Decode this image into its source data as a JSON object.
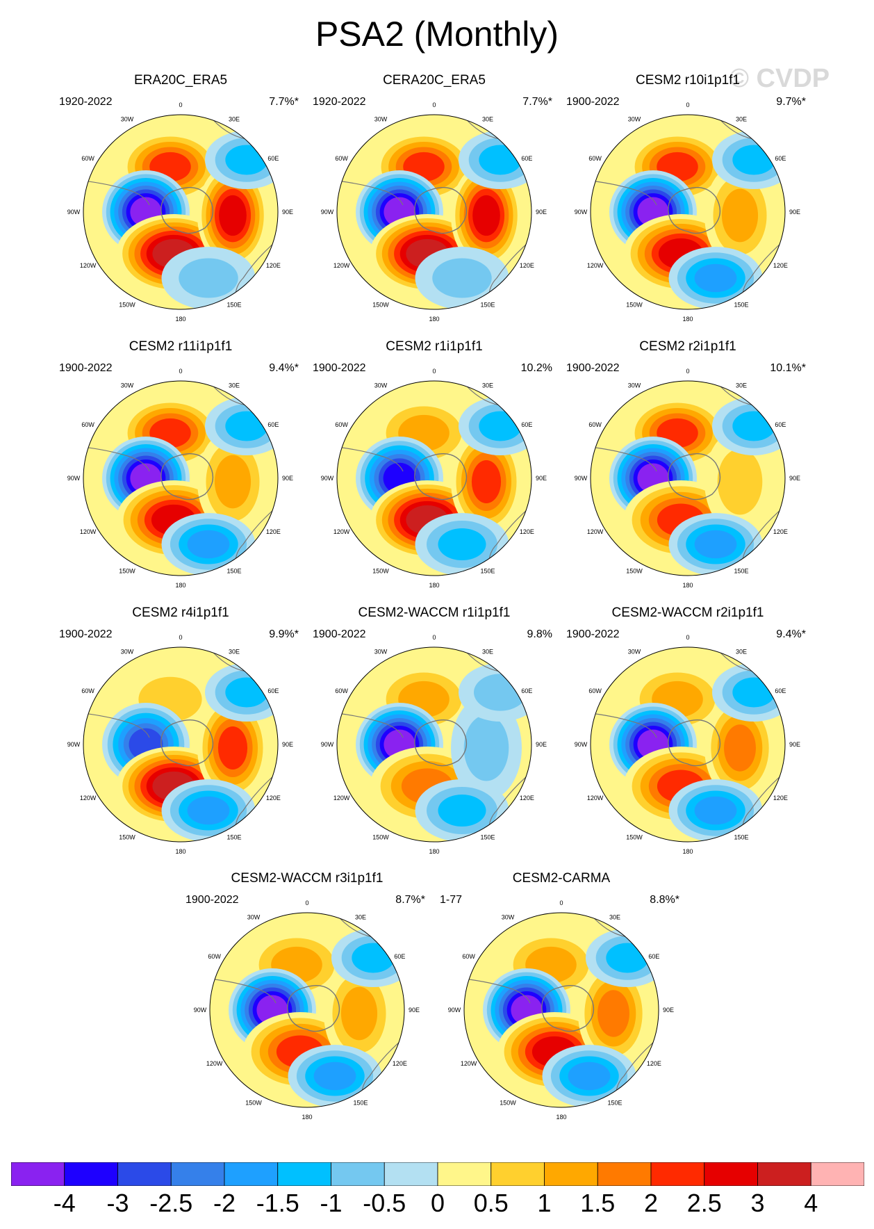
{
  "title": "PSA2 (Monthly)",
  "watermark": "© CVDP",
  "lon_labels": [
    "0",
    "30E",
    "60E",
    "90E",
    "120E",
    "150E",
    "180",
    "150W",
    "120W",
    "90W",
    "60W",
    "30W"
  ],
  "panels": [
    {
      "title": "ERA20C_ERA5",
      "years": "1920-2022",
      "pct": "7.7%*",
      "blobs": [
        {
          "v": 2.5,
          "kind": "pos"
        },
        {
          "v": -4,
          "kind": "neg"
        },
        {
          "v": 4,
          "kind": "pos"
        },
        {
          "v": 3,
          "kind": "pos"
        },
        {
          "v": -0.5,
          "kind": "neg"
        },
        {
          "v": -1,
          "kind": "neg"
        }
      ]
    },
    {
      "title": "CERA20C_ERA5",
      "years": "1920-2022",
      "pct": "7.7%*",
      "blobs": [
        {
          "v": 2.5,
          "kind": "pos"
        },
        {
          "v": -4,
          "kind": "neg"
        },
        {
          "v": 4,
          "kind": "pos"
        },
        {
          "v": 3,
          "kind": "pos"
        },
        {
          "v": -0.5,
          "kind": "neg"
        },
        {
          "v": -1,
          "kind": "neg"
        }
      ]
    },
    {
      "title": "CESM2 r10i1p1f1",
      "years": "1900-2022",
      "pct": "9.7%*",
      "blobs": [
        {
          "v": 2.5,
          "kind": "pos"
        },
        {
          "v": -4,
          "kind": "neg"
        },
        {
          "v": 3,
          "kind": "pos"
        },
        {
          "v": 1.5,
          "kind": "pos"
        },
        {
          "v": -1.5,
          "kind": "neg"
        },
        {
          "v": -1,
          "kind": "neg"
        }
      ]
    },
    {
      "title": "CESM2 r11i1p1f1",
      "years": "1900-2022",
      "pct": "9.4%*",
      "blobs": [
        {
          "v": 2.5,
          "kind": "pos"
        },
        {
          "v": -4,
          "kind": "neg"
        },
        {
          "v": 3,
          "kind": "pos"
        },
        {
          "v": 1.5,
          "kind": "pos"
        },
        {
          "v": -1.5,
          "kind": "neg"
        },
        {
          "v": -1,
          "kind": "neg"
        }
      ]
    },
    {
      "title": "CESM2 r1i1p1f1",
      "years": "1900-2022",
      "pct": "10.2%",
      "blobs": [
        {
          "v": 1.5,
          "kind": "pos"
        },
        {
          "v": -3,
          "kind": "neg"
        },
        {
          "v": 4,
          "kind": "pos"
        },
        {
          "v": 2.5,
          "kind": "pos"
        },
        {
          "v": -1,
          "kind": "neg"
        },
        {
          "v": -1,
          "kind": "neg"
        }
      ]
    },
    {
      "title": "CESM2 r2i1p1f1",
      "years": "1900-2022",
      "pct": "10.1%*",
      "blobs": [
        {
          "v": 2.5,
          "kind": "pos"
        },
        {
          "v": -4,
          "kind": "neg"
        },
        {
          "v": 2.5,
          "kind": "pos"
        },
        {
          "v": 1,
          "kind": "pos"
        },
        {
          "v": -1.5,
          "kind": "neg"
        },
        {
          "v": -1,
          "kind": "neg"
        }
      ]
    },
    {
      "title": "CESM2 r4i1p1f1",
      "years": "1900-2022",
      "pct": "9.9%*",
      "blobs": [
        {
          "v": 1,
          "kind": "pos"
        },
        {
          "v": -2.5,
          "kind": "neg"
        },
        {
          "v": 4,
          "kind": "pos"
        },
        {
          "v": 2.5,
          "kind": "pos"
        },
        {
          "v": -1.5,
          "kind": "neg"
        },
        {
          "v": -1,
          "kind": "neg"
        }
      ]
    },
    {
      "title": "CESM2-WACCM r1i1p1f1",
      "years": "1900-2022",
      "pct": "9.8%",
      "blobs": [
        {
          "v": 1.5,
          "kind": "pos"
        },
        {
          "v": -4,
          "kind": "neg"
        },
        {
          "v": 2,
          "kind": "pos"
        },
        {
          "v": -0.5,
          "kind": "neg"
        },
        {
          "v": -1,
          "kind": "neg"
        },
        {
          "v": -0.5,
          "kind": "neg"
        }
      ]
    },
    {
      "title": "CESM2-WACCM r2i1p1f1",
      "years": "1900-2022",
      "pct": "9.4%*",
      "blobs": [
        {
          "v": 1.5,
          "kind": "pos"
        },
        {
          "v": -4,
          "kind": "neg"
        },
        {
          "v": 2.5,
          "kind": "pos"
        },
        {
          "v": 2,
          "kind": "pos"
        },
        {
          "v": -1.5,
          "kind": "neg"
        },
        {
          "v": -1,
          "kind": "neg"
        }
      ]
    },
    {
      "title": "CESM2-WACCM r3i1p1f1",
      "years": "1900-2022",
      "pct": "8.7%*",
      "blobs": [
        {
          "v": 1.5,
          "kind": "pos"
        },
        {
          "v": -4,
          "kind": "neg"
        },
        {
          "v": 2.5,
          "kind": "pos"
        },
        {
          "v": 1.5,
          "kind": "pos"
        },
        {
          "v": -1.5,
          "kind": "neg"
        },
        {
          "v": -1,
          "kind": "neg"
        }
      ]
    },
    {
      "title": "CESM2-CARMA",
      "years": "1-77",
      "pct": "8.8%*",
      "blobs": [
        {
          "v": 1.5,
          "kind": "pos"
        },
        {
          "v": -4,
          "kind": "neg"
        },
        {
          "v": 3,
          "kind": "pos"
        },
        {
          "v": 2,
          "kind": "pos"
        },
        {
          "v": -1.5,
          "kind": "neg"
        },
        {
          "v": -1,
          "kind": "neg"
        }
      ]
    }
  ],
  "colorbar": {
    "colors": [
      "#8a22f0",
      "#1e00ff",
      "#2b4ae8",
      "#3580ea",
      "#1ea0ff",
      "#00c0ff",
      "#74c8f0",
      "#b3e0f2",
      "#fff68a",
      "#ffd02e",
      "#ffa800",
      "#ff7a00",
      "#ff2a00",
      "#e60000",
      "#cc1f1f",
      "#ffb3b3"
    ],
    "ticks": [
      "-4",
      "-3",
      "-2.5",
      "-2",
      "-1.5",
      "-1",
      "-0.5",
      "0",
      "0.5",
      "1",
      "1.5",
      "2",
      "2.5",
      "3",
      "4"
    ]
  }
}
